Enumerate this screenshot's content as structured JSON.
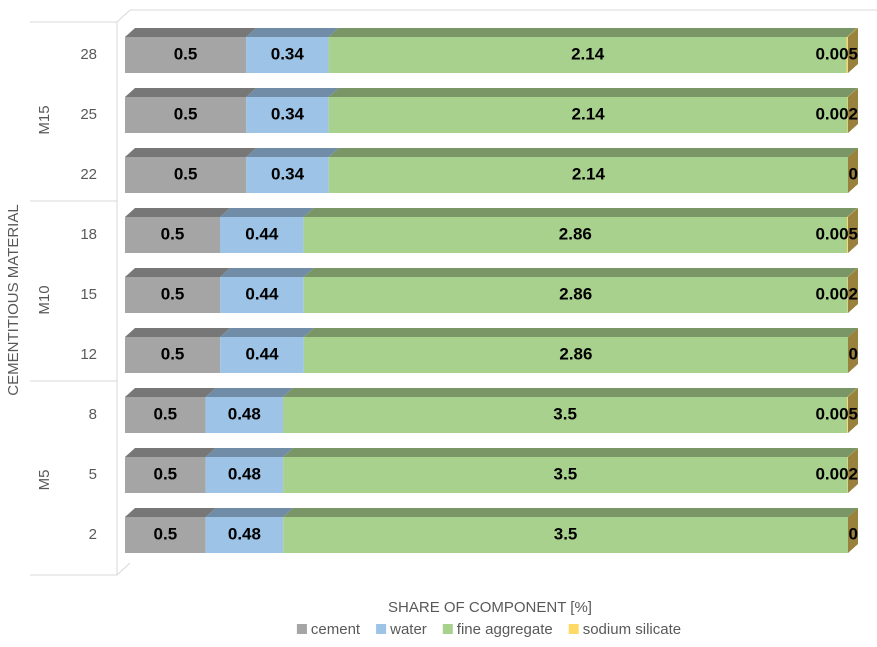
{
  "chart_data": {
    "type": "bar",
    "orientation": "horizontal",
    "stack": "percent",
    "x_axis_label": "SHARE OF COMPONENT [%]",
    "y_axis_label": "CEMENTITIOUS MATERIAL",
    "groups": [
      {
        "label": "M15",
        "categories": [
          "28",
          "25",
          "22"
        ]
      },
      {
        "label": "M10",
        "categories": [
          "18",
          "15",
          "12"
        ]
      },
      {
        "label": "M5",
        "categories": [
          "8",
          "5",
          "2"
        ]
      }
    ],
    "series": [
      {
        "name": "cement",
        "color": "#a5a5a5",
        "values": [
          0.5,
          0.5,
          0.5,
          0.5,
          0.5,
          0.5,
          0.5,
          0.5,
          0.5
        ]
      },
      {
        "name": "water",
        "color": "#9dc3e6",
        "values": [
          0.34,
          0.34,
          0.34,
          0.44,
          0.44,
          0.44,
          0.48,
          0.48,
          0.48
        ]
      },
      {
        "name": "fine aggregate",
        "color": "#a9d18e",
        "values": [
          2.14,
          2.14,
          2.14,
          2.86,
          2.86,
          2.86,
          3.5,
          3.5,
          3.5
        ]
      },
      {
        "name": "sodium silicate",
        "color": "#ffd966",
        "values": [
          0.005,
          0.002,
          0,
          0.005,
          0.002,
          0,
          0.005,
          0.002,
          0
        ]
      }
    ],
    "legend": "bottom"
  }
}
